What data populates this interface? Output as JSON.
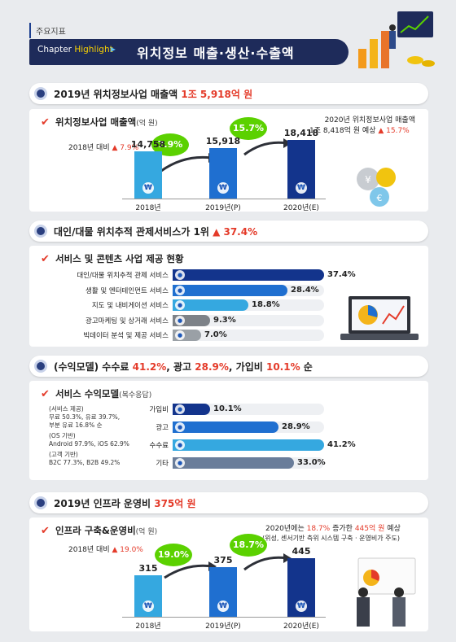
{
  "header": {
    "tag": "주요지표",
    "chapter": "Chapter",
    "highlight": "Highlight",
    "title": "위치정보 매출·생산·수출액"
  },
  "sections": {
    "s1": {
      "title": "2019년 위치정보사업 매출액",
      "highlight": "1조 5,918억 원"
    },
    "s2": {
      "title": "대인/대물 위치추적 관제서비스가 1위",
      "highlight": "▲ 37.4%"
    },
    "s3": {
      "title_pre": "(수익모델) 수수료",
      "v1": "41.2%",
      "mid1": ", 광고",
      "v2": "28.9%",
      "mid2": ", 가입비",
      "v3": "10.1%",
      "post": " 순"
    },
    "s4": {
      "title": "2019년 인프라 운영비",
      "highlight": "375억 원"
    }
  },
  "panel1": {
    "head": "위치정보사업 매출액",
    "unit": "(억 원)",
    "note_left": "2018년 대비",
    "note_left_val": "▲ 7.9%",
    "note_right_1": "2020년 위치정보사업 매출액",
    "note_right_2a": "1조 8,418억 원 예상",
    "note_right_2b": "▲ 15.7%",
    "bubbles": [
      "7.9%",
      "15.7%"
    ],
    "icon_letter": "₩"
  },
  "panel2": {
    "head": "서비스 및 콘텐츠 사업 제공 현황"
  },
  "panel3": {
    "head": "서비스 수익모델",
    "unit": "(복수응답)",
    "side_notes": [
      "(서비스 제공)",
      "무료 50.3%, 유료 39.7%,",
      "부분 유료 16.8% 순",
      "(OS 기반)",
      "Android 97.9%, iOS 62.9%",
      "(고객 기반)",
      "B2C 77.3%, B2B 49.2%"
    ]
  },
  "panel4": {
    "head": "인프라 구축&운영비",
    "unit": "(억 원)",
    "note_left": "2018년 대비",
    "note_left_val": "▲ 19.0%",
    "note_right_1a": "2020년에는",
    "note_right_1b": "18.7%",
    "note_right_1c": "증가한",
    "note_right_1d": "445억 원",
    "note_right_1e": "예상",
    "note_right_2": "(위성, 센서기반 측위 시스템 구축 · 운영비가 주도)",
    "bubbles": [
      "19.0%",
      "18.7%"
    ]
  },
  "colors": {
    "navy": "#1e2b5a",
    "accent_red": "#e43b2a",
    "green": "#5bd100",
    "bar_light": "#35a8e0",
    "bar_mid": "#1f6fd0",
    "bar_dark": "#13348c"
  },
  "chart_data": [
    {
      "type": "bar",
      "title": "위치정보사업 매출액",
      "ylabel": "(억 원)",
      "categories": [
        "2018년",
        "2019년(P)",
        "2020년(E)"
      ],
      "values": [
        14758,
        15918,
        18418
      ],
      "value_labels": [
        "14,758",
        "15,918",
        "18,418"
      ],
      "ylim": [
        0,
        18418
      ]
    },
    {
      "type": "bar",
      "orientation": "horizontal",
      "title": "서비스 및 콘텐츠 사업 제공 현황",
      "categories": [
        "대인/대물 위치추적 관제 서비스",
        "생활 및 엔터테인먼트 서비스",
        "지도 및 내비게이션 서비스",
        "광고마케팅 및 상거래 서비스",
        "빅데이터 분석 및 제공 서비스"
      ],
      "values": [
        37.4,
        28.4,
        18.8,
        9.3,
        7.0
      ],
      "value_labels": [
        "37.4%",
        "28.4%",
        "18.8%",
        "9.3%",
        "7.0%"
      ],
      "xlim": [
        0,
        37.4
      ]
    },
    {
      "type": "bar",
      "orientation": "horizontal",
      "title": "서비스 수익모델",
      "categories": [
        "가입비",
        "광고",
        "수수료",
        "기타"
      ],
      "values": [
        10.1,
        28.9,
        41.2,
        33.0
      ],
      "value_labels": [
        "10.1%",
        "28.9%",
        "41.2%",
        "33.0%"
      ],
      "xlim": [
        0,
        41.2
      ]
    },
    {
      "type": "bar",
      "title": "인프라 구축&운영비",
      "ylabel": "(억 원)",
      "categories": [
        "2018년",
        "2019년(P)",
        "2020년(E)"
      ],
      "values": [
        315,
        375,
        445
      ],
      "value_labels": [
        "315",
        "375",
        "445"
      ],
      "ylim": [
        0,
        445
      ]
    }
  ]
}
